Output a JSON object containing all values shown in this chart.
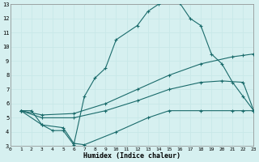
{
  "title": "",
  "xlabel": "Humidex (Indice chaleur)",
  "bg_color": "#d6f0f0",
  "grid_color": "#c8e8e8",
  "line_color": "#1a6b6b",
  "xlim": [
    0,
    23
  ],
  "ylim": [
    3,
    13
  ],
  "xticks": [
    0,
    1,
    2,
    3,
    4,
    5,
    6,
    7,
    8,
    9,
    10,
    11,
    12,
    13,
    14,
    15,
    16,
    17,
    18,
    19,
    20,
    21,
    22,
    23
  ],
  "yticks": [
    3,
    4,
    5,
    6,
    7,
    8,
    9,
    10,
    11,
    12,
    13
  ],
  "line1_x": [
    1,
    2,
    3,
    4,
    5,
    6,
    7,
    8,
    9,
    10,
    12,
    13,
    14,
    15,
    16,
    17,
    18,
    19,
    20,
    21,
    22,
    23
  ],
  "line1_y": [
    5.5,
    5.5,
    4.5,
    4.1,
    4.1,
    3.1,
    6.5,
    7.8,
    8.5,
    10.5,
    11.5,
    12.5,
    13.0,
    13.3,
    13.1,
    12.0,
    11.5,
    9.5,
    8.8,
    7.5,
    6.5,
    5.5
  ],
  "line2_x": [
    1,
    3,
    6,
    9,
    12,
    15,
    18,
    21,
    22,
    23
  ],
  "line2_y": [
    5.5,
    5.2,
    5.3,
    6.0,
    7.0,
    8.0,
    8.8,
    9.3,
    9.4,
    9.5
  ],
  "line3_x": [
    1,
    3,
    6,
    9,
    12,
    15,
    18,
    20,
    22,
    23
  ],
  "line3_y": [
    5.5,
    5.0,
    5.0,
    5.5,
    6.2,
    7.0,
    7.5,
    7.6,
    7.5,
    5.5
  ],
  "line4_x": [
    1,
    3,
    5,
    6,
    7,
    10,
    13,
    15,
    18,
    21,
    22,
    23
  ],
  "line4_y": [
    5.5,
    4.5,
    4.3,
    3.2,
    3.1,
    4.0,
    5.0,
    5.5,
    5.5,
    5.5,
    5.5,
    5.5
  ]
}
